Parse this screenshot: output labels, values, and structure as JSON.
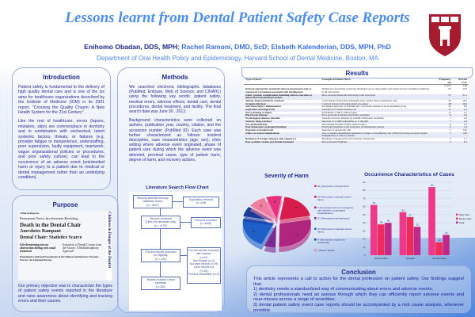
{
  "header": {
    "title": "Lessons learnt from Dental Patient Safety Case Reports",
    "lead_author": "Enihomo Obadan, DDS, MPH",
    "coauthors": "; Rachel Ramoni, DMD, ScD; Elsbeth Kalenderian, DDS, MPH, PhD",
    "department": "Department of Oral Health Policy and Epidemiology, Harvard School of Dental Medicine, Boston, MA"
  },
  "introduction": {
    "heading": "Introduction",
    "p1": "Patient safety is fundamental to the delivery of high quality dental care and is one of the six aims for healthcare organizations described by the Institute of Medicine (IOM) in its 2001 report, \"Crossing the Quality Chasm: A New Health System for the 21st Century\".",
    "p2": "Like the rest of healthcare, errors (lapses, mistakes, slips) are commonplace in dentistry and in combination with unchecked, latent systemic factors, threats, or failures (e.g. provider fatigue or inexperience, understaffing, poor supervision, faulty equipment, teamwork, vague organizational policies or procedures, and poor safety culture), can lead to the occurrence of an adverse event (unintended harm or injury to a patient due to medical or dental management rather than an underlying condition)."
  },
  "purpose": {
    "heading": "Purpose",
    "clipping_headlines": [
      "Clinical Reports",
      "Death in the Dental Chair",
      "Anecdotes Rampant",
      "Permanent Nerve Involvement Resulting",
      "Dental Chair: Statistics Scarce",
      "Life threatening airway obstruction during root canal treatment",
      "Extraction of Dental Crowns from the Airway: A Multidisciplinary Approach",
      "Endodontics-Related Paresthesia of the Mental and Inferior Alveolar Nerves: An Updated Review",
      "Children in Danger at the Dentist"
    ],
    "text": "Our primary objective was to characterize the types of patient safety events reported in the literature and raise awareness about identifying and tracking errors and their causes."
  },
  "methods": {
    "heading": "Methods",
    "p1": "We searched electronic bibliographic databases (PubMed, Embase, Web of Science, and CINAHL) using the following key words: patient safety, medical errors, adverse effects, dental care, dental procedures, dental treatment, and facility. The final search date was June 30 , 2013.",
    "p2": "Background characteristics were collected on authors, publication year, country, citation, and the accession number (PubMed ID). Each case was further characterized as follows: incident description, case characteristics (age, sex), clinic setting where adverse event originated, phase of patient care during which the adverse event was detected, proximal cause, type of patient harm, degree of harm, and recovery actions.",
    "flow_title": "Literature Search Flow Chart",
    "flow": {
      "identified": [
        "Records identified through",
        "database search",
        "(n = 4837)"
      ],
      "duplicates": [
        "Duplicates removed",
        "(n =108)"
      ],
      "screened": [
        "Records screened",
        "(Titles and abstracts only)",
        "(n = 4729)"
      ],
      "excluded": [
        "Records excluded",
        "(n =4496)"
      ],
      "assessed": [
        "Full-text articles assessed",
        "for eligibility",
        "(n = 233)"
      ],
      "fulltext_excluded": [
        "Full-text articles excluded",
        "with reasons",
        "(n=51)",
        "Non English (n=2)",
        "Not case reports (n=29)",
        "Case reports n/a",
        "(n=18)",
        "Full text unavailable (n=2)"
      ],
      "included": [
        "Studies included in final",
        "synthesis",
        "(n=182)"
      ]
    }
  },
  "results": {
    "heading": "Results",
    "columns": [
      "Type of Harm¹",
      "Example of Patient Harm",
      "Frequency (n)",
      "Percent (%)²"
    ],
    "total": {
      "n": "n=270",
      "pct": "100"
    },
    "rows": [
      [
        "Delayed appropriate treatment/ disease progression and/ or unnecessary treatment associated with misdiagnosis",
        "Melkersson-Rosenthal syndrome misdiagnosed as angioedema and dental abscess resulting in multiple tooth extractions",
        "62",
        "23.0"
      ],
      [
        "Other systemic complications including adverse reactions to dental device/material/procedure",
        "Intra cerebral hematoma following tooth extraction",
        "57",
        "21.1"
      ],
      [
        "Allergy/ Hypersensitivity reactions",
        "Latex allergy (following radiograph pack, rubber dam, prophylaxis cup)",
        "29",
        "10.7"
      ],
      [
        "Systemic infection",
        "Cerebral abscess following dental procedure",
        "28",
        "10.4"
      ],
      [
        "Soft tissue injury/ inflammation",
        "Accidental injection of formalin into soft tissues instead of local anesthesia (LA)",
        "23",
        "8.5"
      ],
      [
        "Aspiration of foreign body",
        "Aspiration of rubber mouth prop",
        "11",
        "4.1"
      ],
      [
        "Nerve damage or injury",
        "Paresthesia of infra-orbital region",
        "11",
        "4.1"
      ],
      [
        "Hard tissue damage",
        "Root perforation during endodontic treatment",
        "8",
        "3.0"
      ],
      [
        "Psychological distress/ disorder",
        "Anorexia nervosa induced by painful orthodontic treatment",
        "7",
        "2.6"
      ],
      [
        "Toxicity/ drug overdose",
        "Injection of 1:1000 Adrenaline vs 1:100,000",
        "7",
        "2.6"
      ],
      [
        "Oro-facial infection",
        "Necrotizing fasciitis of infra-orbital region",
        "6",
        "2.2"
      ],
      [
        "Poor hemostasis/ prolonged bleeding",
        "Following traumatic tooth extraction in hemophiliac patient",
        "6",
        "2.2"
      ],
      [
        "Ingestion of foreign body",
        "Ingestion of endodontic file",
        "5",
        "1.85"
      ],
      [
        "Other oro-facial complications",
        "Tear of temporomandibular ligaments in temporo mandibular joint (TMJ) following excessive digital manipulation of chin by dentist",
        "5",
        "1.85"
      ],
      [
        "Retention of foreign object(s) with sequela (s)",
        "Breakage of surgical bur and retention within bone",
        "3",
        "1.1"
      ],
      [
        "Poor aesthetic results post dental treatment",
        "Mal positioned implants",
        "2",
        "0.7"
      ]
    ]
  },
  "chart_data": [
    {
      "type": "pie",
      "title": "Severity of Harm",
      "categories": [
        "E1 (Temporary minimal harm)",
        "E2 (Temporary moderate severe harm)",
        "F (Temporary harm w/ emergency care transfer or prolonged hospitalization)",
        "G1 (Permanent minimal harm)",
        "G2 (Permanent moderate severe harm)",
        "H (Intervention required to sustain life)",
        "I (Patient death)"
      ],
      "values": [
        16,
        38,
        55,
        12,
        42,
        14,
        18
      ],
      "colors": [
        "#e8307e",
        "#d81c4c",
        "#b0267e",
        "#7a2a92",
        "#1f5fc8",
        "#1a3a9a",
        "#ee7fa0"
      ],
      "legend": "right"
    },
    {
      "type": "bar",
      "title": "Occurrence Characteristics of Cases",
      "categories": [
        "Dental Office",
        "Hospital",
        "Not Specified"
      ],
      "series": [
        {
          "name": "After Visit",
          "values": [
            62,
            53,
            84
          ],
          "color": "#f0388a"
        },
        {
          "name": "During Visit",
          "values": [
            38,
            47,
            16
          ],
          "color": "#f02a5a"
        },
        {
          "name": "Total",
          "values": [
            40,
            35,
            25
          ],
          "color": "#c0288a"
        }
      ],
      "ylim": [
        0,
        90
      ],
      "yticks": [
        0,
        10,
        20,
        30,
        40,
        50,
        60,
        70,
        80,
        90
      ],
      "grid": true,
      "legend": "right"
    }
  ],
  "conclusion": {
    "heading": "Conclusion",
    "intro": "This article represents a call to action for the dental profession on patient safety. Our findings suggest that:",
    "points": [
      "1) dentistry needs a standardized way of communicating about errors and adverse events;",
      "2) dental professionals need an avenue through which they can efficiently report adverse events and near-misses across a range of severities;",
      "3) dental patient safety event case reports should be accompanied by a root cause analysis, whenever possible."
    ]
  }
}
